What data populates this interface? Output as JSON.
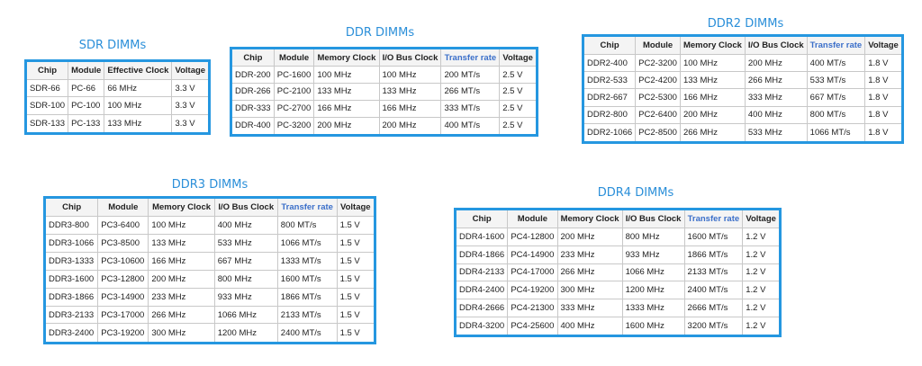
{
  "tables": [
    {
      "title": "SDR DIMMs",
      "headers": [
        "Chip",
        "Module",
        "Effective Clock",
        "Voltage"
      ],
      "rows": [
        [
          "SDR-66",
          "PC-66",
          "66 MHz",
          "3.3 V"
        ],
        [
          "SDR-100",
          "PC-100",
          "100 MHz",
          "3.3 V"
        ],
        [
          "SDR-133",
          "PC-133",
          "133 MHz",
          "3.3 V"
        ]
      ]
    },
    {
      "title": "DDR DIMMs",
      "headers": [
        "Chip",
        "Module",
        "Memory Clock",
        "I/O Bus Clock",
        "Transfer rate",
        "Voltage"
      ],
      "rows": [
        [
          "DDR-200",
          "PC-1600",
          "100 MHz",
          "100 MHz",
          "200 MT/s",
          "2.5 V"
        ],
        [
          "DDR-266",
          "PC-2100",
          "133 MHz",
          "133 MHz",
          "266 MT/s",
          "2.5 V"
        ],
        [
          "DDR-333",
          "PC-2700",
          "166 MHz",
          "166 MHz",
          "333 MT/s",
          "2.5 V"
        ],
        [
          "DDR-400",
          "PC-3200",
          "200 MHz",
          "200 MHz",
          "400 MT/s",
          "2.5 V"
        ]
      ]
    },
    {
      "title": "DDR2 DIMMs",
      "headers": [
        "Chip",
        "Module",
        "Memory Clock",
        "I/O Bus Clock",
        "Transfer rate",
        "Voltage"
      ],
      "rows": [
        [
          "DDR2-400",
          "PC2-3200",
          "100 MHz",
          "200 MHz",
          "400 MT/s",
          "1.8 V"
        ],
        [
          "DDR2-533",
          "PC2-4200",
          "133 MHz",
          "266 MHz",
          "533 MT/s",
          "1.8 V"
        ],
        [
          "DDR2-667",
          "PC2-5300",
          "166 MHz",
          "333 MHz",
          "667 MT/s",
          "1.8 V"
        ],
        [
          "DDR2-800",
          "PC2-6400",
          "200 MHz",
          "400 MHz",
          "800 MT/s",
          "1.8 V"
        ],
        [
          "DDR2-1066",
          "PC2-8500",
          "266 MHz",
          "533 MHz",
          "1066 MT/s",
          "1.8 V"
        ]
      ]
    },
    {
      "title": "DDR3 DIMMs",
      "headers": [
        "Chip",
        "Module",
        "Memory Clock",
        "I/O Bus Clock",
        "Transfer rate",
        "Voltage"
      ],
      "rows": [
        [
          "DDR3-800",
          "PC3-6400",
          "100 MHz",
          "400 MHz",
          "800 MT/s",
          "1.5 V"
        ],
        [
          "DDR3-1066",
          "PC3-8500",
          "133 MHz",
          "533 MHz",
          "1066 MT/s",
          "1.5 V"
        ],
        [
          "DDR3-1333",
          "PC3-10600",
          "166 MHz",
          "667 MHz",
          "1333 MT/s",
          "1.5 V"
        ],
        [
          "DDR3-1600",
          "PC3-12800",
          "200 MHz",
          "800 MHz",
          "1600 MT/s",
          "1.5 V"
        ],
        [
          "DDR3-1866",
          "PC3-14900",
          "233 MHz",
          "933 MHz",
          "1866 MT/s",
          "1.5 V"
        ],
        [
          "DDR3-2133",
          "PC3-17000",
          "266 MHz",
          "1066 MHz",
          "2133 MT/s",
          "1.5 V"
        ],
        [
          "DDR3-2400",
          "PC3-19200",
          "300 MHz",
          "1200 MHz",
          "2400 MT/s",
          "1.5 V"
        ]
      ]
    },
    {
      "title": "DDR4 DIMMs",
      "headers": [
        "Chip",
        "Module",
        "Memory Clock",
        "I/O Bus Clock",
        "Transfer rate",
        "Voltage"
      ],
      "rows": [
        [
          "DDR4-1600",
          "PC4-12800",
          "200 MHz",
          "800 MHz",
          "1600 MT/s",
          "1.2 V"
        ],
        [
          "DDR4-1866",
          "PC4-14900",
          "233 MHz",
          "933 MHz",
          "1866 MT/s",
          "1.2 V"
        ],
        [
          "DDR4-2133",
          "PC4-17000",
          "266 MHz",
          "1066 MHz",
          "2133 MT/s",
          "1.2 V"
        ],
        [
          "DDR4-2400",
          "PC4-19200",
          "300 MHz",
          "1200 MHz",
          "2400 MT/s",
          "1.2 V"
        ],
        [
          "DDR4-2666",
          "PC4-21300",
          "333 MHz",
          "1333 MHz",
          "2666 MT/s",
          "1.2 V"
        ],
        [
          "DDR4-3200",
          "PC4-25600",
          "400 MHz",
          "1600 MHz",
          "3200 MT/s",
          "1.2 V"
        ]
      ]
    }
  ]
}
